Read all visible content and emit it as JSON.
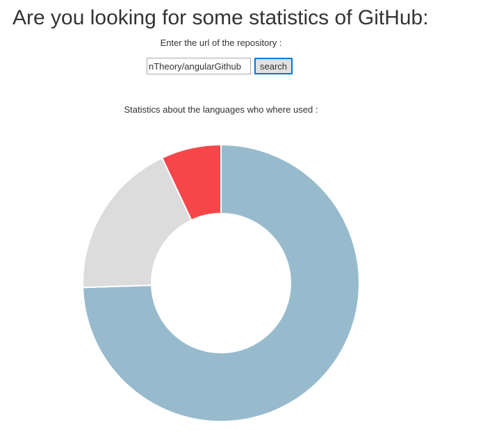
{
  "header": {
    "title": "Are you looking for some statistics of GitHub:"
  },
  "search": {
    "label": "Enter the url of the repository :",
    "value": "nTheory/angularGithub",
    "button_label": "search"
  },
  "chart_section": {
    "heading": "Statistics about the languages who where used :"
  },
  "chart_data": {
    "type": "pie",
    "donut": true,
    "title": "",
    "values": [
      74.5,
      18.5,
      7.0
    ],
    "colors": [
      "#97bbcd",
      "#dcdcdc",
      "#f7464a"
    ],
    "segment_stroke": "#ffffff",
    "legend": "none"
  }
}
